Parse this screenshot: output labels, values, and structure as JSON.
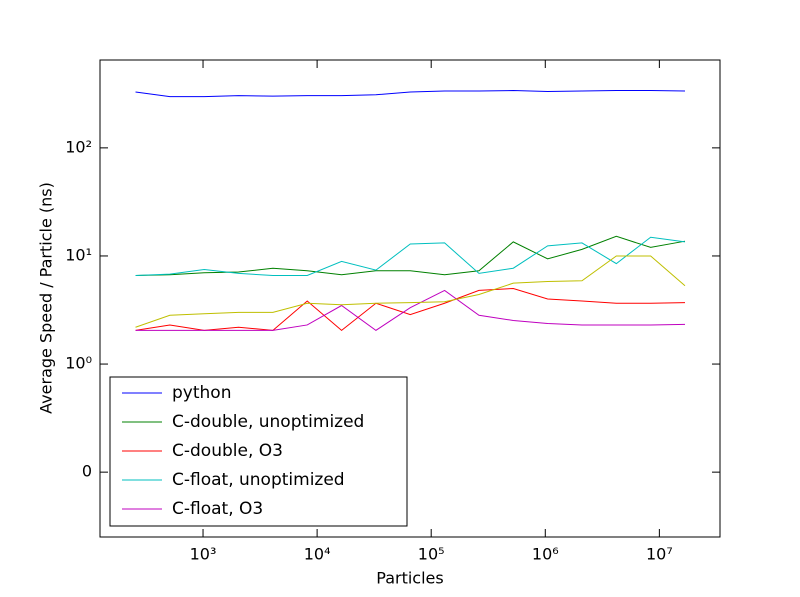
{
  "chart_data": {
    "type": "line",
    "xlabel": "Particles",
    "ylabel": "Average Speed / Particle (ns)",
    "x": [
      256,
      512,
      1024,
      2048,
      4096,
      8192,
      16384,
      32768,
      65536,
      131072,
      262144,
      524288,
      1048576,
      2097152,
      4194304,
      8388608,
      16777216
    ],
    "xscale": "log",
    "yscale": "symlog",
    "xlim": [
      125,
      34000000
    ],
    "ylim": [
      -0.6,
      650
    ],
    "xticks": [
      {
        "value": 1000,
        "label": "10³"
      },
      {
        "value": 10000,
        "label": "10⁴"
      },
      {
        "value": 100000,
        "label": "10⁵"
      },
      {
        "value": 1000000,
        "label": "10⁶"
      },
      {
        "value": 10000000,
        "label": "10⁷"
      }
    ],
    "yticks": [
      {
        "value": 100,
        "label": "10²"
      },
      {
        "value": 10,
        "label": "10¹"
      },
      {
        "value": 1,
        "label": "10⁰"
      },
      0
    ],
    "legend": "lower left",
    "series": [
      {
        "name": "python",
        "color": "#0000ff",
        "values": [
          329,
          298,
          298,
          304,
          301,
          304,
          304,
          310,
          329,
          336,
          336,
          339,
          332,
          336,
          339,
          339,
          336
        ]
      },
      {
        "name": "C-double, unoptimized",
        "color": "#008000",
        "values": [
          6.6,
          6.7,
          7.0,
          7.1,
          7.7,
          7.3,
          6.7,
          7.3,
          7.3,
          6.7,
          7.3,
          13.5,
          9.4,
          11.5,
          15.2,
          12.0,
          13.7
        ]
      },
      {
        "name": "C-double, O3",
        "color": "#ff0000",
        "values": [
          2.05,
          2.3,
          2.05,
          2.19,
          2.05,
          3.83,
          2.05,
          3.65,
          2.87,
          3.65,
          4.8,
          5.0,
          4.0,
          3.83,
          3.65,
          3.65,
          3.7
        ]
      },
      {
        "name": "C-float, unoptimized",
        "color": "#00bfbf",
        "values": [
          6.6,
          6.8,
          7.5,
          6.9,
          6.6,
          6.6,
          8.9,
          7.4,
          12.9,
          13.2,
          6.9,
          7.7,
          12.4,
          13.2,
          8.5,
          14.9,
          13.5
        ]
      },
      {
        "name": "C-float, O3",
        "color": "#bf00bf",
        "values": [
          2.05,
          2.05,
          2.05,
          2.05,
          2.05,
          2.3,
          3.48,
          2.05,
          3.32,
          4.8,
          2.83,
          2.53,
          2.37,
          2.3,
          2.3,
          2.3,
          2.33
        ]
      },
      {
        "color": "#bfbf00",
        "values": [
          2.19,
          2.83,
          2.92,
          3.01,
          3.01,
          3.65,
          3.54,
          3.65,
          3.7,
          3.77,
          4.4,
          5.6,
          5.8,
          5.9,
          10,
          10,
          5.3
        ]
      }
    ]
  }
}
